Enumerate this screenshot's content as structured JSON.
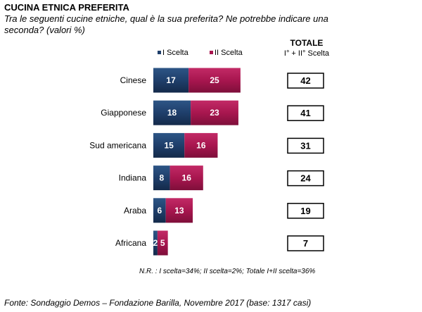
{
  "header": {
    "title": "CUCINA ETNICA PREFERITA",
    "subtitle": "Tra le seguenti cucine etniche, qual è la sua preferita? Ne potrebbe indicare una seconda? (valori %)"
  },
  "chart_data": {
    "type": "bar",
    "orientation": "horizontal",
    "stacked": true,
    "categories": [
      "Cinese",
      "Giapponese",
      "Sud americana",
      "Indiana",
      "Araba",
      "Africana"
    ],
    "series": [
      {
        "name": "I Scelta",
        "values": [
          17,
          18,
          15,
          8,
          6,
          2
        ],
        "color": "#1f3f6b"
      },
      {
        "name": "II Scelta",
        "values": [
          25,
          23,
          16,
          16,
          13,
          5
        ],
        "color": "#a8164f"
      }
    ],
    "totals_header": [
      "TOTALE",
      "I° + II° Scelta"
    ],
    "totals": [
      42,
      41,
      31,
      24,
      19,
      7
    ],
    "legend_position": "top",
    "grid": false
  },
  "footnote": "N.R. : I scelta=34%; II scelta=2%; Totale I+II scelta=36%",
  "source": "Fonte: Sondaggio Demos – Fondazione Barilla, Novembre 2017 (base: 1317 casi)"
}
